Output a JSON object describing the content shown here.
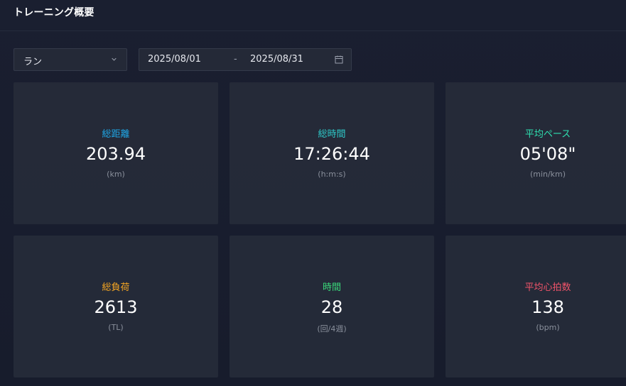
{
  "header": {
    "title": "トレーニング概要"
  },
  "filters": {
    "sport": {
      "selected": "ラン",
      "icon": "chevron-down-icon"
    },
    "date_range": {
      "start": "2025/08/01",
      "separator": "-",
      "end": "2025/08/31",
      "icon": "calendar-icon"
    }
  },
  "cards": [
    {
      "label": "総距離",
      "value": "203.94",
      "unit": "(km)",
      "color": "#1fa8e8"
    },
    {
      "label": "総時間",
      "value": "17:26:44",
      "unit": "(h:m:s)",
      "color": "#2ec9c9"
    },
    {
      "label": "平均ペース",
      "value": "05'08\"",
      "unit": "(min/km)",
      "color": "#2ee0b0"
    },
    {
      "label": "総負荷",
      "value": "2613",
      "unit": "(TL)",
      "color": "#f5a623"
    },
    {
      "label": "時間",
      "value": "28",
      "unit": "(回/4週)",
      "color": "#3ad87a"
    },
    {
      "label": "平均心拍数",
      "value": "138",
      "unit": "(bpm)",
      "color": "#f2546a"
    }
  ]
}
